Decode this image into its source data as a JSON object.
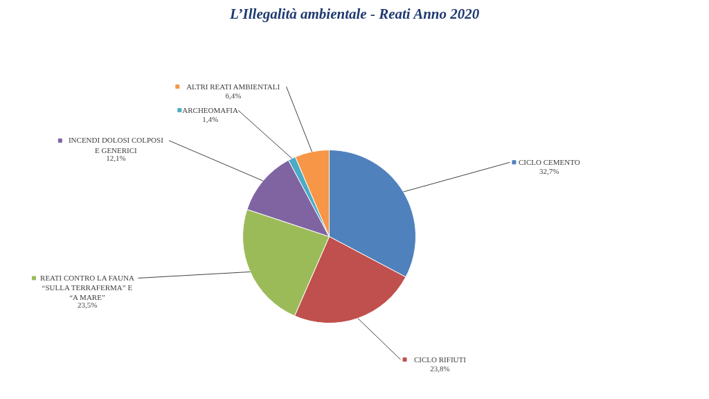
{
  "chart_data": {
    "type": "pie",
    "title": "L’Illegalità ambientale - Reati Anno 2020",
    "categories": [
      "CICLO CEMENTO",
      "CICLO RIFIUTI",
      "REATI CONTRO LA FAUNA\n“SULLA TERRAFERMA” E\n“A MARE”",
      "INCENDI DOLOSI COLPOSI\nE GENERICI",
      "ARCHEOMAFIA",
      "ALTRI REATI AMBIENTALI"
    ],
    "values": [
      32.7,
      23.8,
      23.5,
      12.1,
      1.4,
      6.4
    ],
    "colors": [
      "#4f81bd",
      "#c0504d",
      "#9bbb59",
      "#8064a2",
      "#4bacc6",
      "#f79646"
    ],
    "value_labels": [
      "32,7%",
      "23,8%",
      "23,5%",
      "12,1%",
      "1,4%",
      "6,4%"
    ],
    "legend": "left"
  }
}
